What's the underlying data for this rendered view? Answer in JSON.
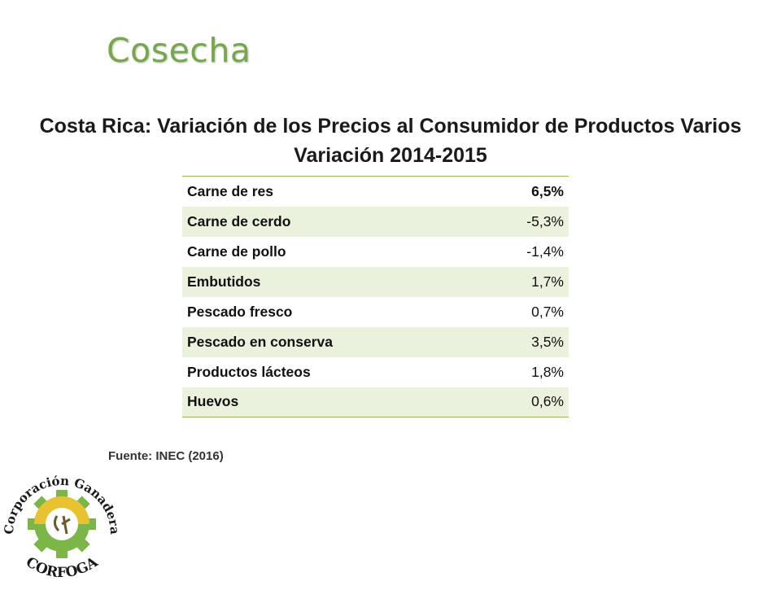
{
  "slide": {
    "title": "Cosecha",
    "table_title_line1": "Costa Rica: Variación de los Precios al Consumidor de Productos Varios",
    "table_title_line2": "Variación 2014-2015",
    "source": "Fuente: INEC (2016)"
  },
  "table": {
    "rows": [
      {
        "product": "Carne de res",
        "value": "6,5%"
      },
      {
        "product": "Carne de cerdo",
        "value": "-5,3%"
      },
      {
        "product": "Carne de pollo",
        "value": "-1,4%"
      },
      {
        "product": "Embutidos",
        "value": "1,7%"
      },
      {
        "product": "Pescado fresco",
        "value": "0,7%"
      },
      {
        "product": "Pescado en conserva",
        "value": "3,5%"
      },
      {
        "product": "Productos lácteos",
        "value": "1,8%"
      },
      {
        "product": "Huevos",
        "value": "0,6%"
      }
    ]
  },
  "logo": {
    "arc_top": "Corporación Ganadera",
    "arc_bottom": "CORFOGA",
    "icon": "corfoga-gear-logo"
  },
  "colors": {
    "title_green": "#76a84a",
    "row_band": "#eaf1dd",
    "table_border": "#9bbb59"
  }
}
